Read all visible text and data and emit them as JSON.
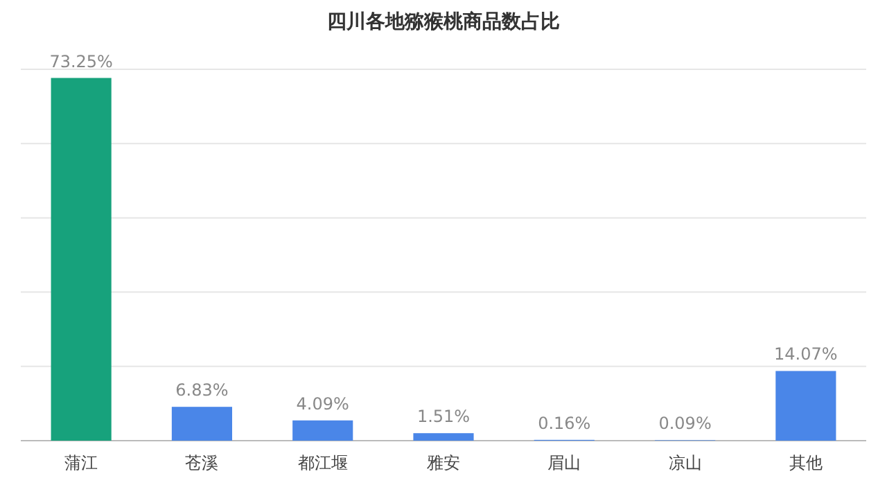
{
  "chart_data": {
    "type": "bar",
    "title": "四川各地猕猴桃商品数占比",
    "categories": [
      "蒲江",
      "苍溪",
      "都江堰",
      "雅安",
      "眉山",
      "凉山",
      "其他"
    ],
    "values": [
      73.25,
      6.83,
      4.09,
      1.51,
      0.16,
      0.09,
      14.07
    ],
    "colors": [
      "#17a27c",
      "#4a86e8",
      "#4a86e8",
      "#4a86e8",
      "#4a86e8",
      "#4a86e8",
      "#4a86e8"
    ],
    "value_labels": [
      "73.25%",
      "6.83%",
      "4.09%",
      "1.51%",
      "0.16%",
      "0.09%",
      "14.07%"
    ],
    "ylim": [
      0,
      75
    ],
    "yticks": [
      {
        "value": 0,
        "label": null
      },
      {
        "value": 15,
        "label": null
      },
      {
        "value": 30,
        "label": null
      },
      {
        "value": 45,
        "label": null
      },
      {
        "value": 60,
        "label": null
      },
      {
        "value": 75,
        "label": null
      }
    ],
    "tick_labels": "x",
    "grid": "y"
  }
}
